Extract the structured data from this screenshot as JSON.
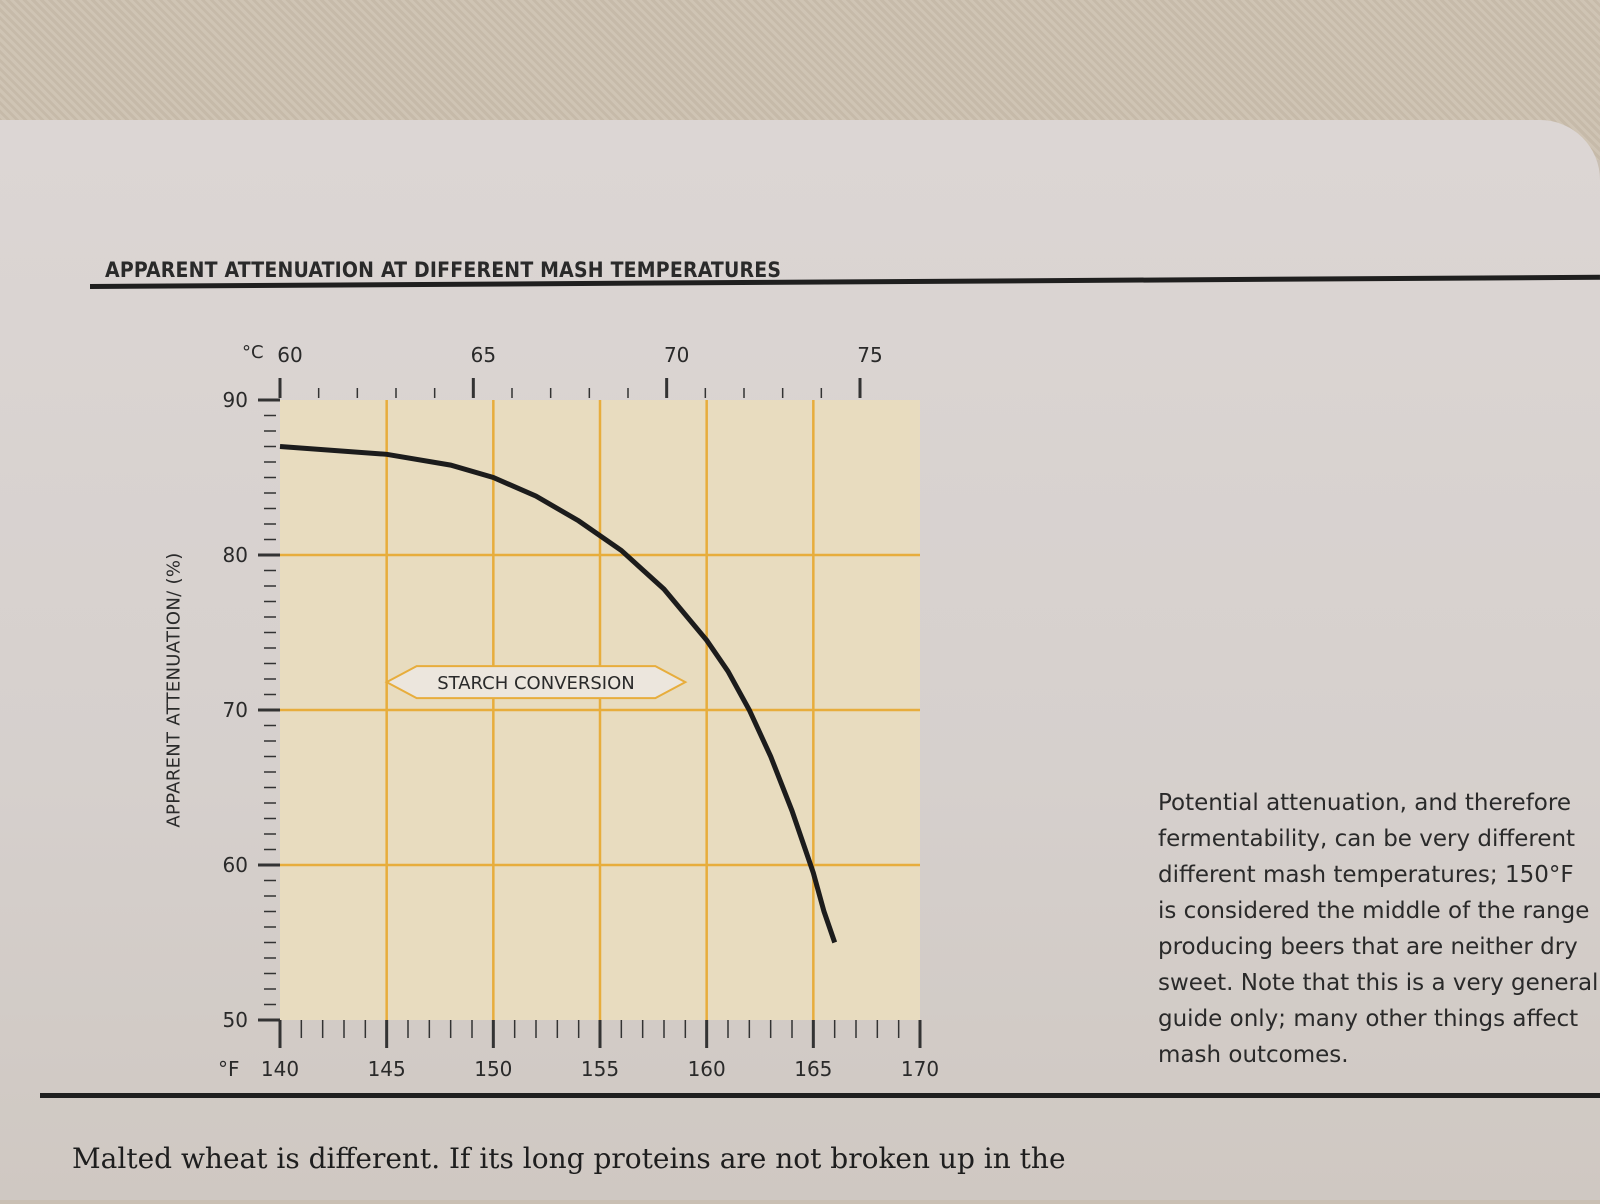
{
  "figure": {
    "title": "APPARENT ATTENUATION AT DIFFERENT MASH TEMPERATURES"
  },
  "chart_data": {
    "type": "line",
    "title": "APPARENT ATTENUATION AT DIFFERENT MASH TEMPERATURES",
    "ylabel": "APPARENT ATTENUATION/ (%)",
    "xlabel_f": "°F",
    "xlabel_c": "°C",
    "xlim_f": [
      140,
      170
    ],
    "xlim_c": [
      60,
      75
    ],
    "ylim": [
      50,
      90
    ],
    "x_ticks_f": [
      "140",
      "145",
      "150",
      "155",
      "160",
      "165",
      "170"
    ],
    "x_ticks_c": [
      "60",
      "65",
      "70",
      "75"
    ],
    "y_ticks": [
      "50",
      "60",
      "70",
      "80",
      "90"
    ],
    "grid": true,
    "series": [
      {
        "x": [
          140,
          145,
          148,
          150,
          152,
          154,
          156,
          158,
          160,
          161,
          162,
          163,
          164,
          165,
          165.5,
          166
        ],
        "y": [
          87,
          86.5,
          85.8,
          85,
          83.8,
          82.2,
          80.3,
          77.8,
          74.5,
          72.5,
          70,
          67,
          63.5,
          59.5,
          57,
          55
        ]
      }
    ],
    "annotation": {
      "text": "STARCH CONVERSION",
      "x_range": [
        145,
        159
      ]
    }
  },
  "side_text": {
    "lines": [
      "Potential attenuation, and therefore",
      "fermentability, can be very different",
      "different mash temperatures; 150°F",
      "is considered the middle of the range",
      "producing beers that are neither dry",
      "sweet. Note that this is a very general",
      "guide only; many other things affect",
      "mash outcomes."
    ]
  },
  "body": {
    "line1": "Malted wheat is different. If its long proteins are not broken up in the"
  }
}
